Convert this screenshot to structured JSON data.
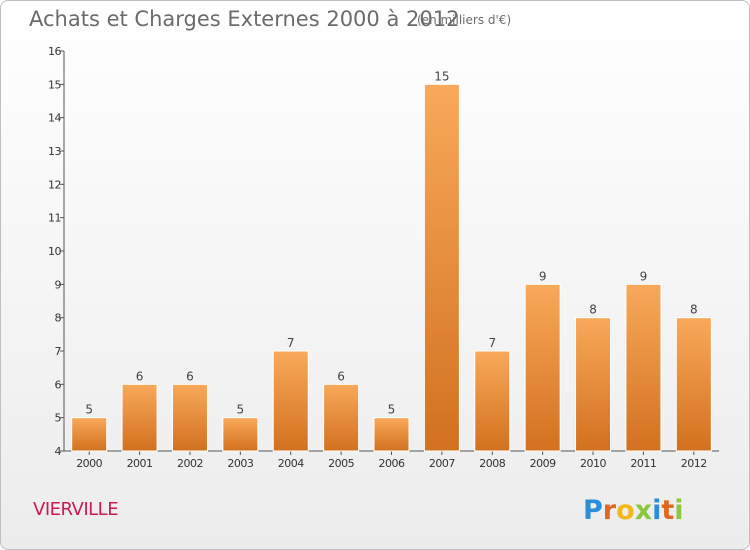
{
  "title": "Achats et Charges Externes 2000 à 2012",
  "unit": "(en milliers d'€)",
  "commune": "VIERVILLE",
  "logo": "Proxiti",
  "colors": {
    "bar_light": "#f8a95a",
    "bar_dark": "#d2711f",
    "title": "#6b6b6b",
    "commune": "#cc1a52",
    "logo_letters": [
      "#2a8fd6",
      "#e0671f",
      "#f0b91a",
      "#8cc63f",
      "#2a8fd6",
      "#e0671f",
      "#8cc63f"
    ]
  },
  "chart_data": {
    "type": "bar",
    "categories": [
      "2000",
      "2001",
      "2002",
      "2003",
      "2004",
      "2005",
      "2006",
      "2007",
      "2008",
      "2009",
      "2010",
      "2011",
      "2012"
    ],
    "values": [
      5,
      6,
      6,
      5,
      7,
      6,
      5,
      15,
      7,
      9,
      8,
      9,
      8
    ],
    "title": "Achats et Charges Externes 2000 à 2012",
    "xlabel": "",
    "ylabel": "",
    "ylim": [
      4,
      16
    ],
    "yticks": [
      "4",
      "5",
      "6",
      "7",
      "8",
      "9",
      "10",
      "11",
      "12",
      "13",
      "14",
      "15",
      "16"
    ],
    "grid": false,
    "legend": "none"
  }
}
